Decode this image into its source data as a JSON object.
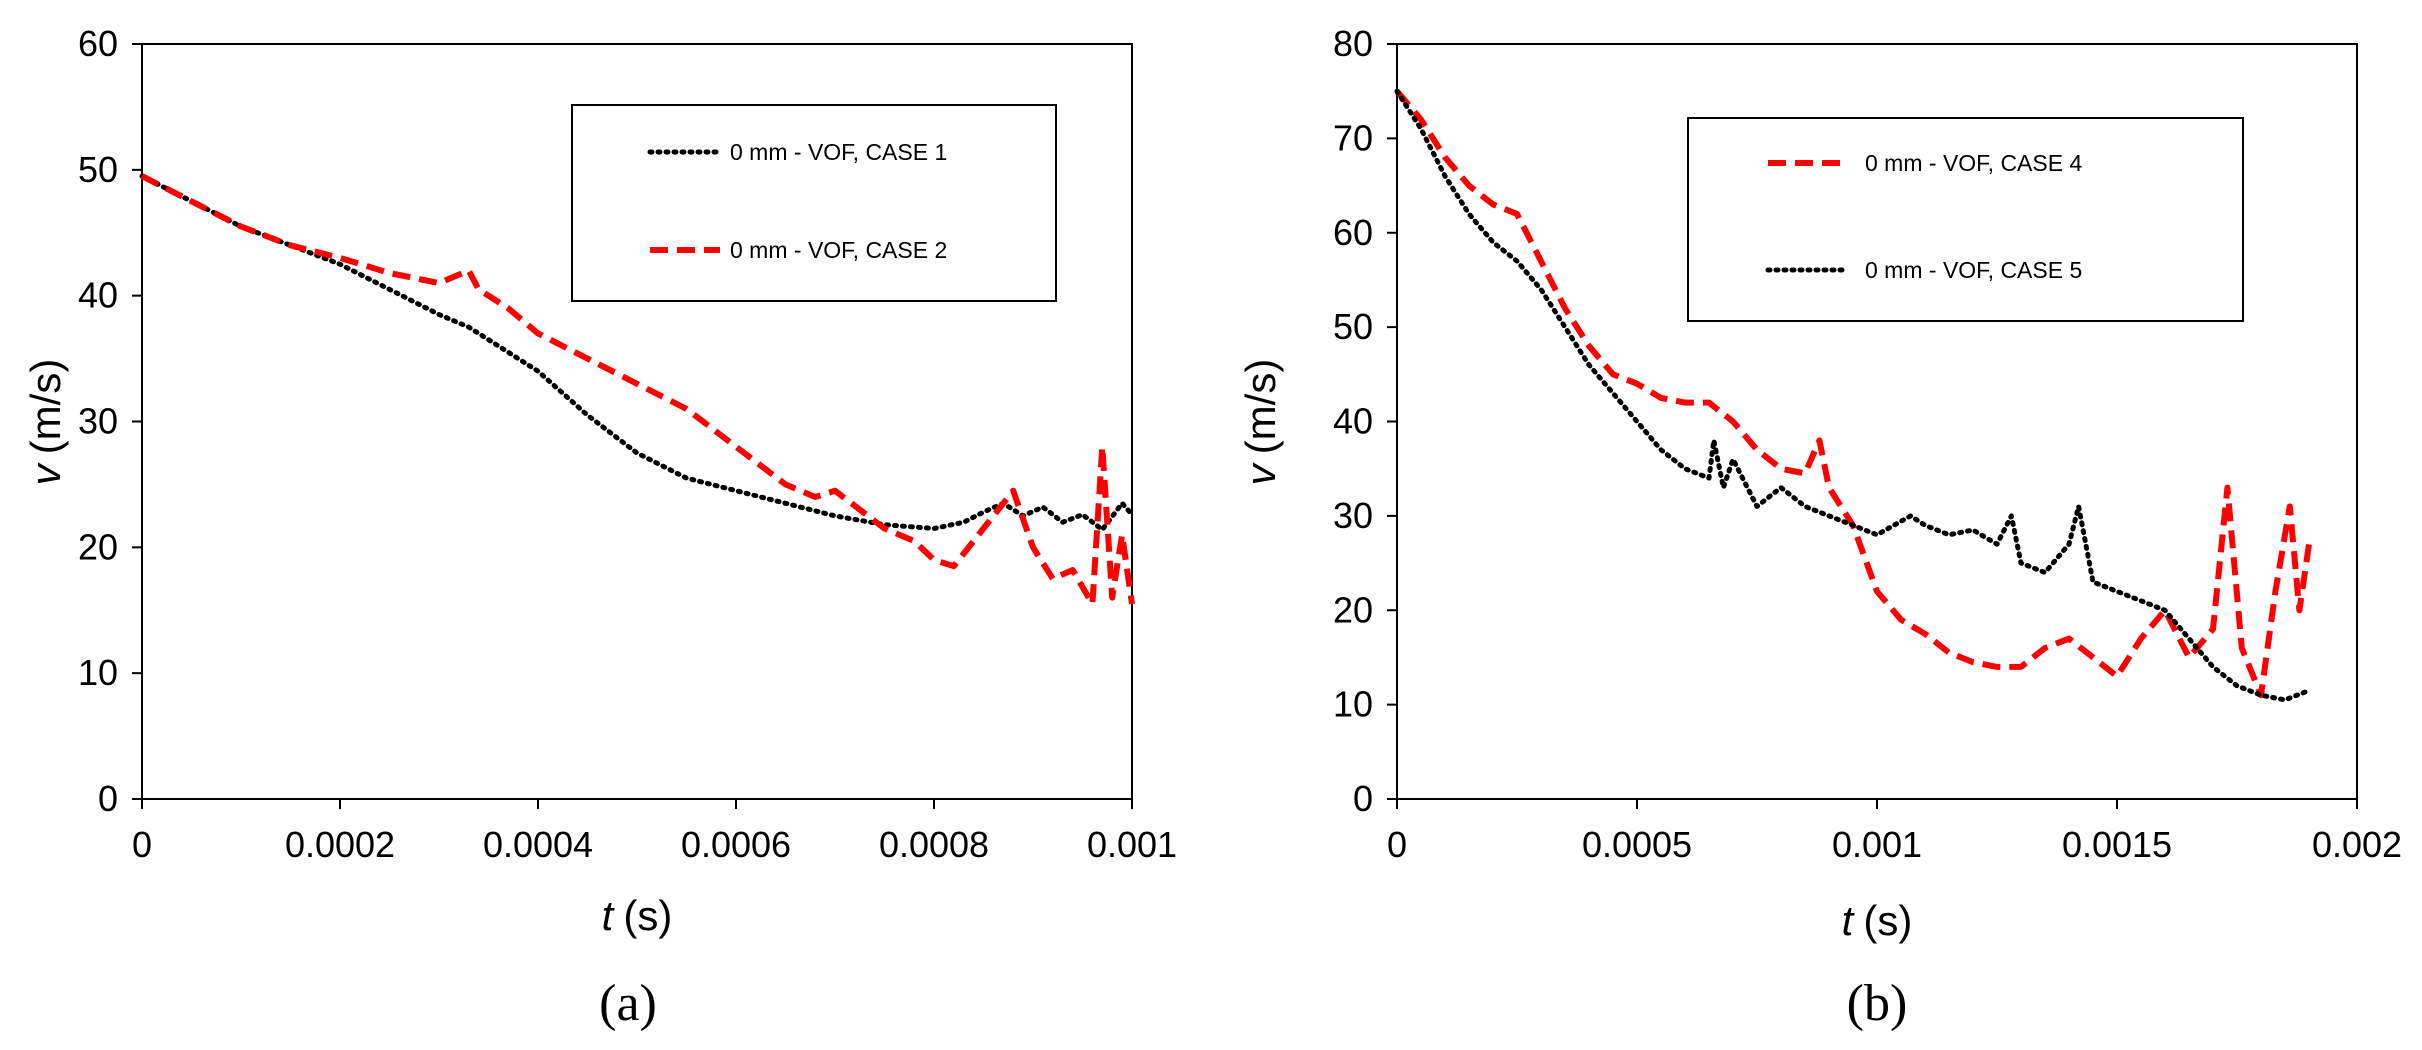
{
  "figure": {
    "panels": [
      "(a)",
      "(b)"
    ]
  },
  "chart_data": [
    {
      "type": "line",
      "caption": "(a)",
      "ylabel_symbol": "v",
      "ylabel_unit": "(m/s)",
      "xlabel_symbol": "t",
      "xlabel_unit": "(s)",
      "xlim": [
        0,
        0.001
      ],
      "ylim": [
        0,
        60
      ],
      "xticks": [
        "0",
        "0.0002",
        "0.0004",
        "0.0006",
        "0.0008",
        "0.001"
      ],
      "yticks": [
        "0",
        "10",
        "20",
        "30",
        "40",
        "50",
        "60"
      ],
      "legend_position": "top-right",
      "series": [
        {
          "name": "0 mm - VOF, CASE 1",
          "color": "#000000",
          "style": "dotted",
          "x": [
            0,
            5e-05,
            0.0001,
            0.00015,
            0.0002,
            0.00025,
            0.0003,
            0.00033,
            0.00037,
            0.0004,
            0.00045,
            0.0005,
            0.00055,
            0.0006,
            0.00065,
            0.0007,
            0.00075,
            0.0008,
            0.00083,
            0.00085,
            0.00087,
            0.00089,
            0.00091,
            0.00093,
            0.00095,
            0.00097,
            0.00099,
            0.001
          ],
          "values": [
            49.5,
            47.5,
            45.5,
            44,
            42.5,
            40.5,
            38.5,
            37.5,
            35.5,
            34,
            30.5,
            27.5,
            25.5,
            24.5,
            23.5,
            22.5,
            21.8,
            21.5,
            22,
            22.8,
            23.5,
            22.5,
            23.2,
            22,
            22.6,
            21.4,
            23.5,
            22.6
          ]
        },
        {
          "name": "0 mm - VOF, CASE 2",
          "color": "#ff0000",
          "style": "dashed",
          "x": [
            0,
            5e-05,
            0.0001,
            0.00015,
            0.0002,
            0.00025,
            0.0003,
            0.00033,
            0.00034,
            0.00037,
            0.0004,
            0.00045,
            0.0005,
            0.00055,
            0.0006,
            0.00065,
            0.00068,
            0.0007,
            0.00075,
            0.00078,
            0.0008,
            0.00082,
            0.00084,
            0.00086,
            0.00088,
            0.0009,
            0.00092,
            0.00094,
            0.00096,
            0.00097,
            0.00098,
            0.00099,
            0.001
          ],
          "values": [
            49.5,
            47.5,
            45.5,
            44,
            43,
            41.8,
            41,
            42,
            40.5,
            39,
            37,
            35,
            33,
            31,
            28,
            25,
            24,
            24.5,
            21.5,
            20.5,
            19,
            18.5,
            20.5,
            22.5,
            24.5,
            20,
            17.5,
            18.2,
            15.5,
            28,
            16,
            21,
            15.5
          ]
        }
      ]
    },
    {
      "type": "line",
      "caption": "(b)",
      "ylabel_symbol": "v",
      "ylabel_unit": "(m/s)",
      "xlabel_symbol": "t",
      "xlabel_unit": "(s)",
      "xlim": [
        0,
        0.002
      ],
      "ylim": [
        0,
        80
      ],
      "xticks": [
        "0",
        "0.0005",
        "0.001",
        "0.0015",
        "0.002"
      ],
      "yticks": [
        "0",
        "10",
        "20",
        "30",
        "40",
        "50",
        "60",
        "70",
        "80"
      ],
      "legend_position": "top-right",
      "series": [
        {
          "name": "0 mm - VOF, CASE 4",
          "color": "#ff0000",
          "style": "dashed",
          "x": [
            0,
            5e-05,
            0.0001,
            0.00015,
            0.0002,
            0.00025,
            0.0003,
            0.00035,
            0.0004,
            0.00045,
            0.0005,
            0.00055,
            0.0006,
            0.00065,
            0.0007,
            0.00075,
            0.0008,
            0.00085,
            0.00088,
            0.0009,
            0.00095,
            0.001,
            0.00105,
            0.0011,
            0.00115,
            0.0012,
            0.00125,
            0.0013,
            0.00135,
            0.0014,
            0.00145,
            0.0015,
            0.00155,
            0.0016,
            0.00165,
            0.0017,
            0.00173,
            0.00176,
            0.0018,
            0.00183,
            0.00186,
            0.00188,
            0.0019
          ],
          "values": [
            75,
            72,
            68,
            65,
            63,
            62,
            57,
            52,
            48,
            45,
            44,
            42.5,
            42,
            42,
            40,
            37,
            35,
            34.5,
            38,
            33,
            29,
            22,
            19,
            17.5,
            15.5,
            14.5,
            14,
            14,
            16,
            17,
            15,
            13,
            17,
            20,
            15,
            18,
            33,
            16,
            11,
            22,
            31,
            20,
            27
          ]
        },
        {
          "name": "0 mm - VOF, CASE 5",
          "color": "#000000",
          "style": "dotted",
          "x": [
            0,
            5e-05,
            0.0001,
            0.00015,
            0.0002,
            0.00025,
            0.0003,
            0.00035,
            0.0004,
            0.00045,
            0.0005,
            0.00055,
            0.0006,
            0.00065,
            0.00066,
            0.00068,
            0.0007,
            0.00075,
            0.0008,
            0.00085,
            0.0009,
            0.00095,
            0.001,
            0.00107,
            0.0011,
            0.00115,
            0.0012,
            0.00125,
            0.00128,
            0.0013,
            0.00135,
            0.0014,
            0.00142,
            0.00145,
            0.0015,
            0.00155,
            0.0016,
            0.00165,
            0.0017,
            0.00175,
            0.0018,
            0.00185,
            0.0019
          ],
          "values": [
            75,
            71,
            66,
            62,
            59,
            57,
            54,
            50,
            46,
            43,
            40,
            37,
            35,
            34,
            38,
            33,
            36,
            31,
            33,
            31,
            30,
            29,
            28,
            30,
            29,
            28,
            28.5,
            27,
            30,
            25,
            24,
            27,
            31,
            23,
            22,
            21,
            20,
            17,
            14,
            12,
            11,
            10.5,
            11.5
          ]
        }
      ]
    }
  ]
}
